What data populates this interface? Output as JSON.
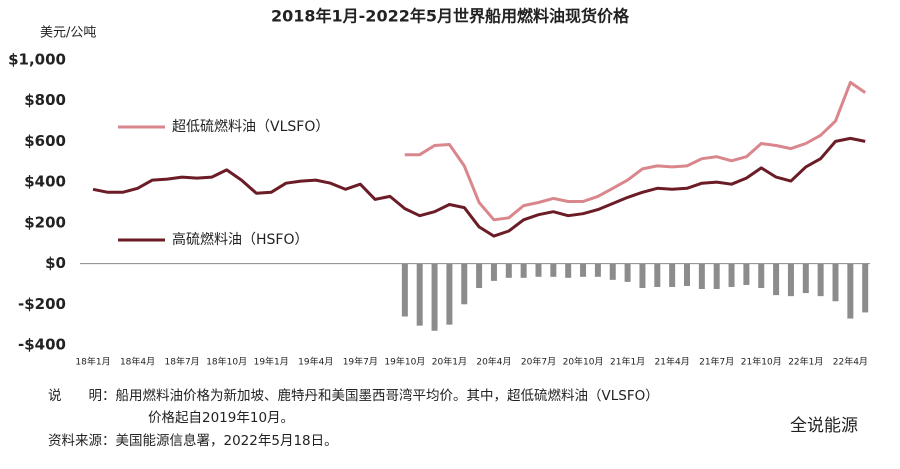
{
  "chart_data": {
    "type": "line",
    "title": "2018年1月-2022年5月世界船用燃料油现货价格",
    "y_label": "美元/公吨",
    "categories": [
      "18年1月",
      null,
      null,
      "18年4月",
      null,
      null,
      "18年7月",
      null,
      null,
      "18年10月",
      null,
      null,
      "19年1月",
      null,
      null,
      "19年4月",
      null,
      null,
      "19年7月",
      null,
      null,
      "19年10月",
      null,
      null,
      "20年1月",
      null,
      null,
      "20年4月",
      null,
      null,
      "20年7月",
      null,
      null,
      "20年10月",
      null,
      null,
      "21年1月",
      null,
      null,
      "21年4月",
      null,
      null,
      "21年7月",
      null,
      null,
      "21年10月",
      null,
      null,
      "22年1月",
      null,
      null,
      "22年4月",
      null
    ],
    "series": [
      {
        "name": "超低硫燃料油（VLSFO）",
        "color": "#d9868c",
        "values": [
          null,
          null,
          null,
          null,
          null,
          null,
          null,
          null,
          null,
          null,
          null,
          null,
          null,
          null,
          null,
          null,
          null,
          null,
          null,
          null,
          null,
          535,
          535,
          580,
          585,
          480,
          300,
          215,
          225,
          285,
          300,
          320,
          305,
          305,
          330,
          370,
          410,
          465,
          480,
          475,
          480,
          515,
          525,
          505,
          525,
          590,
          580,
          565,
          590,
          630,
          700,
          890,
          840
        ]
      },
      {
        "name": "高硫燃料油（HSFO）",
        "color": "#6b1c26",
        "values": [
          365,
          350,
          350,
          370,
          410,
          415,
          425,
          420,
          425,
          460,
          410,
          345,
          350,
          395,
          405,
          410,
          395,
          365,
          390,
          315,
          330,
          270,
          235,
          255,
          290,
          275,
          180,
          135,
          160,
          215,
          240,
          255,
          235,
          245,
          265,
          295,
          325,
          350,
          370,
          365,
          370,
          395,
          400,
          390,
          420,
          470,
          425,
          405,
          475,
          515,
          600,
          615,
          600
        ]
      },
      {
        "type": "bar",
        "color": "#8c8c8c",
        "values": [
          null,
          null,
          null,
          null,
          null,
          null,
          null,
          null,
          null,
          null,
          null,
          null,
          null,
          null,
          null,
          null,
          null,
          null,
          null,
          null,
          null,
          -260,
          -305,
          -330,
          -300,
          -200,
          -120,
          -85,
          -70,
          -70,
          -65,
          -65,
          -70,
          -65,
          -65,
          -80,
          -90,
          -120,
          -115,
          -115,
          -110,
          -125,
          -125,
          -115,
          -105,
          -120,
          -155,
          -160,
          -145,
          -160,
          -185,
          -270,
          -240
        ]
      }
    ],
    "ylim": [
      -400,
      1000
    ],
    "yticks": [
      {
        "value": -400,
        "label": "-$400"
      },
      {
        "value": -200,
        "label": "-$200"
      },
      {
        "value": 0,
        "label": "$0"
      },
      {
        "value": 200,
        "label": "$200"
      },
      {
        "value": 400,
        "label": "$400"
      },
      {
        "value": 600,
        "label": "$600"
      },
      {
        "value": 800,
        "label": "$800"
      },
      {
        "value": 1000,
        "label": "$1,000"
      }
    ],
    "notes": [
      "说　　明：船用燃料油价格为新加坡、鹿特丹和美国墨西哥湾平均价。其中，超低硫燃料油（VLSFO）",
      "价格起自2019年10月。",
      "资料来源：美国能源信息署，2022年5月18日。"
    ],
    "watermark": "全说能源"
  }
}
